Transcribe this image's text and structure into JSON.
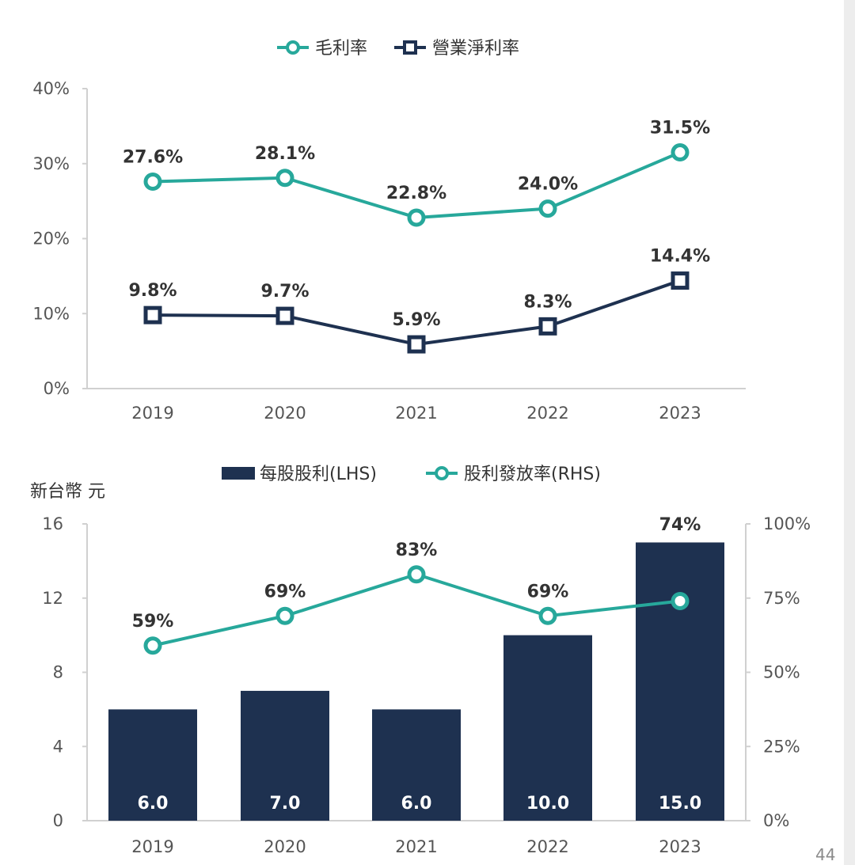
{
  "page": {
    "number": "44"
  },
  "colors": {
    "teal": "#27a89b",
    "navy": "#1e3150",
    "axis": "#d0d0d0",
    "text": "#333333"
  },
  "chart_data": [
    {
      "type": "line",
      "categories": [
        "2019",
        "2020",
        "2021",
        "2022",
        "2023"
      ],
      "series": [
        {
          "name": "毛利率",
          "values": [
            27.6,
            28.1,
            22.8,
            24.0,
            31.5
          ],
          "labels": [
            "27.6%",
            "28.1%",
            "22.8%",
            "24.0%",
            "31.5%"
          ],
          "color": "#27a89b",
          "marker": "circle"
        },
        {
          "name": "營業淨利率",
          "values": [
            9.8,
            9.7,
            5.9,
            8.3,
            14.4
          ],
          "labels": [
            "9.8%",
            "9.7%",
            "5.9%",
            "8.3%",
            "14.4%"
          ],
          "color": "#1e3150",
          "marker": "square"
        }
      ],
      "y_ticks": [
        "0%",
        "10%",
        "20%",
        "30%",
        "40%"
      ],
      "ylim": [
        0,
        40
      ],
      "legend": "top-center",
      "grid": false
    },
    {
      "type": "bar",
      "categories": [
        "2019",
        "2020",
        "2021",
        "2022",
        "2023"
      ],
      "unit_label": "新台幣 元",
      "series": [
        {
          "name": "每股股利(LHS)",
          "values": [
            6.0,
            7.0,
            6.0,
            10.0,
            15.0
          ],
          "labels": [
            "6.0",
            "7.0",
            "6.0",
            "10.0",
            "15.0"
          ],
          "color": "#1e3150",
          "axis": "left"
        },
        {
          "name": "股利發放率(RHS)",
          "values": [
            59,
            69,
            83,
            69,
            74
          ],
          "labels": [
            "59%",
            "69%",
            "83%",
            "69%",
            "74%"
          ],
          "color": "#27a89b",
          "axis": "right",
          "kind": "line"
        }
      ],
      "y_left_ticks": [
        "0",
        "4",
        "8",
        "12",
        "16"
      ],
      "ylim_left": [
        0,
        16
      ],
      "y_right_ticks": [
        "0%",
        "25%",
        "50%",
        "75%",
        "100%"
      ],
      "ylim_right": [
        0,
        100
      ],
      "legend": "top-center",
      "grid": false
    }
  ]
}
